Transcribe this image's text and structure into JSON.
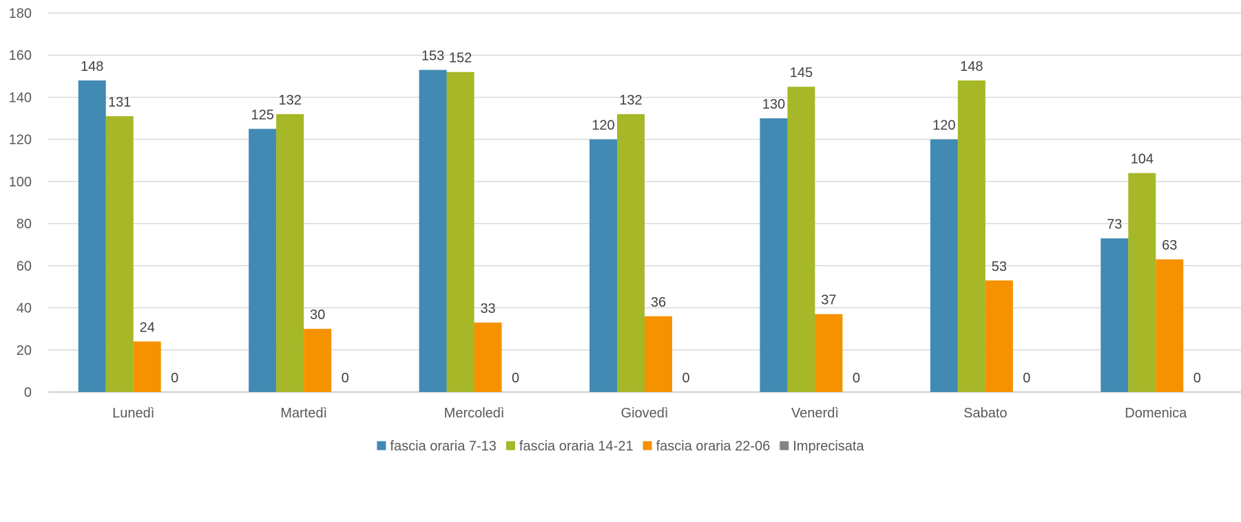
{
  "chart_data": {
    "type": "bar",
    "title": "",
    "xlabel": "",
    "ylabel": "",
    "ylim": [
      0,
      180
    ],
    "yticks": [
      0,
      20,
      40,
      60,
      80,
      100,
      120,
      140,
      160,
      180
    ],
    "grid": true,
    "legend_position": "bottom",
    "categories": [
      "Lunedì",
      "Martedì",
      "Mercoledì",
      "Giovedì",
      "Venerdì",
      "Sabato",
      "Domenica"
    ],
    "series": [
      {
        "name": "fascia oraria 7-13",
        "color": "#418ab3",
        "values": [
          148,
          125,
          153,
          120,
          130,
          120,
          73
        ]
      },
      {
        "name": "fascia oraria 14-21",
        "color": "#a6b727",
        "values": [
          131,
          132,
          152,
          132,
          145,
          148,
          104
        ]
      },
      {
        "name": "fascia oraria 22-06",
        "color": "#f69200",
        "values": [
          24,
          30,
          33,
          36,
          37,
          53,
          63
        ]
      },
      {
        "name": "Imprecisata",
        "color": "#838383",
        "values": [
          0,
          0,
          0,
          0,
          0,
          0,
          0
        ]
      }
    ]
  }
}
